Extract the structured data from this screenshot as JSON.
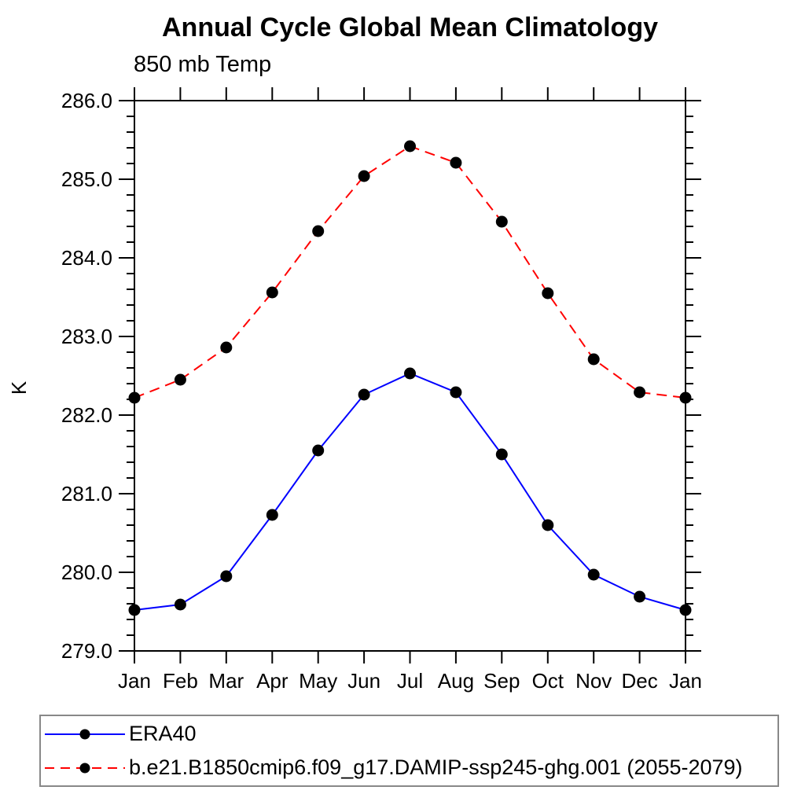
{
  "chart_data": {
    "type": "line",
    "title": "Annual Cycle Global Mean Climatology",
    "subtitle": "850 mb Temp",
    "xlabel": "",
    "ylabel": "K",
    "categories": [
      "Jan",
      "Feb",
      "Mar",
      "Apr",
      "May",
      "Jun",
      "Jul",
      "Aug",
      "Sep",
      "Oct",
      "Nov",
      "Dec",
      "Jan"
    ],
    "ylim": [
      279.0,
      286.0
    ],
    "y_major_step": 1.0,
    "y_minor_step": 0.2,
    "y_tick_labels": [
      "279.0",
      "280.0",
      "281.0",
      "282.0",
      "283.0",
      "284.0",
      "285.0",
      "286.0"
    ],
    "grid": false,
    "legend_position": "bottom-box",
    "axis_color": "#000000",
    "series": [
      {
        "name": "ERA40",
        "color": "#0000ff",
        "line_style": "solid",
        "marker": "filled-circle",
        "marker_color": "#000000",
        "values": [
          279.52,
          279.59,
          279.95,
          280.73,
          281.55,
          282.26,
          282.53,
          282.29,
          281.5,
          280.6,
          279.97,
          279.69,
          279.52
        ]
      },
      {
        "name": "b.e21.B1850cmip6.f09_g17.DAMIP-ssp245-ghg.001 (2055-2079)",
        "color": "#ff0000",
        "line_style": "dashed",
        "marker": "filled-circle",
        "marker_color": "#000000",
        "values": [
          282.22,
          282.45,
          282.86,
          283.56,
          284.34,
          285.04,
          285.42,
          285.21,
          284.46,
          283.55,
          282.71,
          282.29,
          282.22
        ]
      }
    ]
  }
}
